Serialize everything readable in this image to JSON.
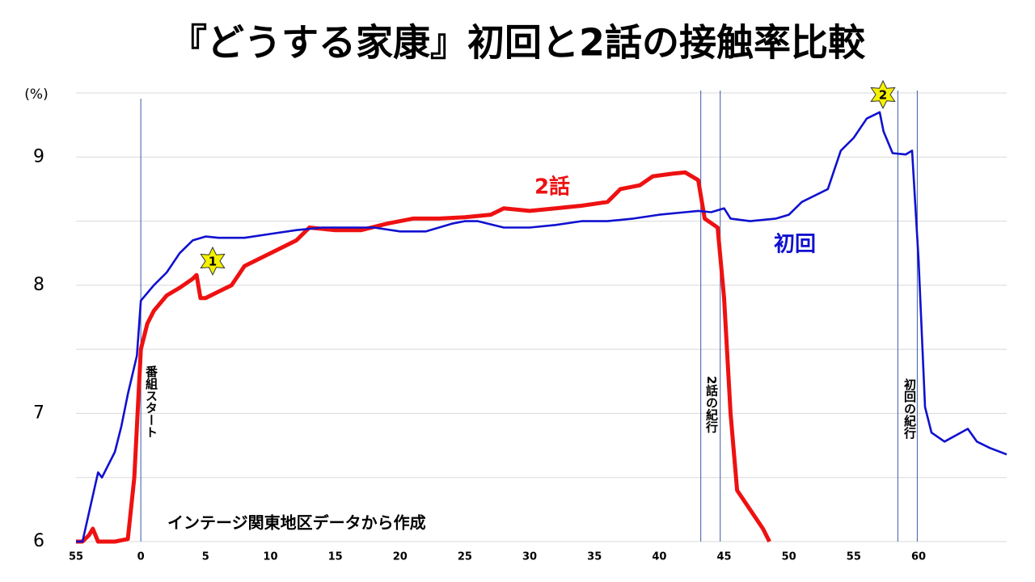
{
  "chart_data": {
    "type": "line",
    "title": "『どうする家康』初回と2話の接触率比較",
    "y_label": "(%)",
    "note": "インテージ関東地区データから作成",
    "xlim": [
      -5,
      66.8
    ],
    "xticks": [
      {
        "value": -5,
        "label": "55"
      },
      0,
      5,
      10,
      15,
      20,
      25,
      30,
      35,
      40,
      45,
      50,
      55,
      60
    ],
    "ylim": [
      6,
      9.5
    ],
    "yticks": [
      6,
      7,
      8,
      9
    ],
    "ygrid": [
      6,
      6.5,
      7,
      7.5,
      8,
      8.5,
      9,
      9.5
    ],
    "vlines": [
      0,
      43.2,
      44.7,
      58.4,
      59.9
    ],
    "annotations": [
      "番組スタート",
      "2話の紀行",
      "初回の紀行"
    ],
    "markers": [
      "1",
      "2"
    ],
    "series": [
      {
        "name": "初回",
        "color": "#1010d0",
        "x": [
          -5,
          -4.5,
          -3.3,
          -3,
          -2,
          -1.5,
          -1,
          -0.3,
          0,
          1,
          2,
          3,
          4,
          5,
          6,
          8,
          10,
          12,
          14,
          16,
          18,
          20,
          22,
          24,
          25,
          26,
          28,
          30,
          32,
          34,
          36,
          38,
          40,
          42,
          43,
          44,
          45,
          45.5,
          47,
          49,
          50,
          51,
          53,
          54,
          55,
          56,
          57,
          57.3,
          58,
          59,
          59.5,
          60,
          60.5,
          61,
          62,
          63.8,
          64.5,
          65.5,
          66.8
        ],
        "values": [
          6.0,
          6.0,
          6.54,
          6.5,
          6.7,
          6.9,
          7.15,
          7.45,
          7.88,
          8.0,
          8.1,
          8.25,
          8.35,
          8.38,
          8.37,
          8.37,
          8.4,
          8.43,
          8.45,
          8.45,
          8.45,
          8.42,
          8.42,
          8.48,
          8.5,
          8.5,
          8.45,
          8.45,
          8.47,
          8.5,
          8.5,
          8.52,
          8.55,
          8.57,
          8.58,
          8.57,
          8.6,
          8.52,
          8.5,
          8.52,
          8.55,
          8.65,
          8.75,
          9.05,
          9.15,
          9.3,
          9.35,
          9.2,
          9.03,
          9.02,
          9.05,
          8.2,
          7.05,
          6.85,
          6.78,
          6.88,
          6.78,
          6.73,
          6.68
        ]
      },
      {
        "name": "2話",
        "color": "#ee1111",
        "x": [
          -5,
          -4.5,
          -4,
          -3.7,
          -3.3,
          -2,
          -1,
          -0.5,
          0,
          0.5,
          1,
          2,
          3,
          4,
          4.3,
          4.6,
          5,
          6,
          7,
          8,
          10,
          12,
          13,
          15,
          17,
          19,
          21,
          23,
          25,
          27,
          28,
          30,
          32,
          34,
          36,
          37,
          38.5,
          39.5,
          41,
          42,
          43,
          43.5,
          44.5,
          45,
          45.5,
          46,
          47,
          48,
          48.5
        ],
        "values": [
          6.0,
          6.0,
          6.05,
          6.1,
          6.0,
          6.0,
          6.02,
          6.5,
          7.5,
          7.7,
          7.8,
          7.92,
          7.98,
          8.05,
          8.08,
          7.9,
          7.9,
          7.95,
          8.0,
          8.15,
          8.25,
          8.35,
          8.45,
          8.43,
          8.43,
          8.48,
          8.52,
          8.52,
          8.53,
          8.55,
          8.6,
          8.58,
          8.6,
          8.62,
          8.65,
          8.75,
          8.78,
          8.85,
          8.87,
          8.88,
          8.82,
          8.52,
          8.45,
          7.9,
          7.0,
          6.4,
          6.25,
          6.1,
          6.0
        ]
      }
    ]
  }
}
